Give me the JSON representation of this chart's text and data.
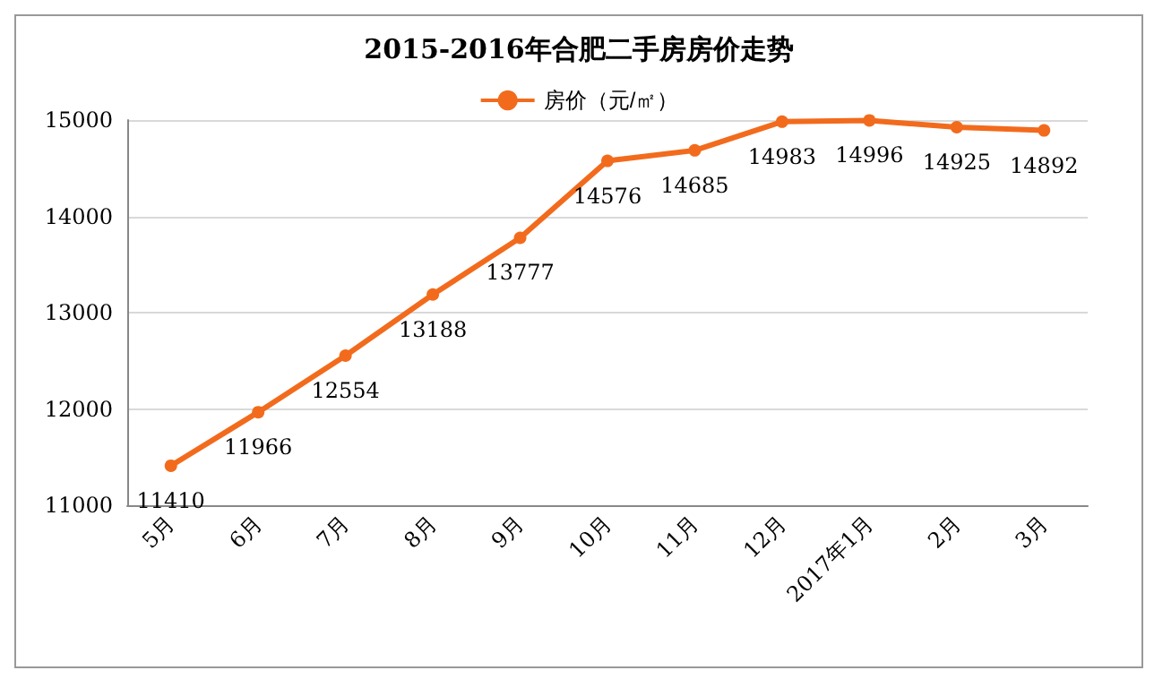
{
  "chart_data": {
    "type": "line",
    "title": "2015-2016年合肥二手房房价走势",
    "categories": [
      "5月",
      "6月",
      "7月",
      "8月",
      "9月",
      "10月",
      "11月",
      "12月",
      "2017年1月",
      "2月",
      "3月"
    ],
    "series": [
      {
        "name": "房价（元/㎡）",
        "color": "#f26b1d",
        "values": [
          11410,
          11966,
          12554,
          13188,
          13777,
          14576,
          14685,
          14983,
          14996,
          14925,
          14892
        ]
      }
    ],
    "ylim": [
      11000,
      15000
    ],
    "yticks": [
      11000,
      12000,
      13000,
      14000,
      15000
    ],
    "grid": "y",
    "legend": "top",
    "marker": "circle",
    "line_style": "solid",
    "data_labels": true
  }
}
